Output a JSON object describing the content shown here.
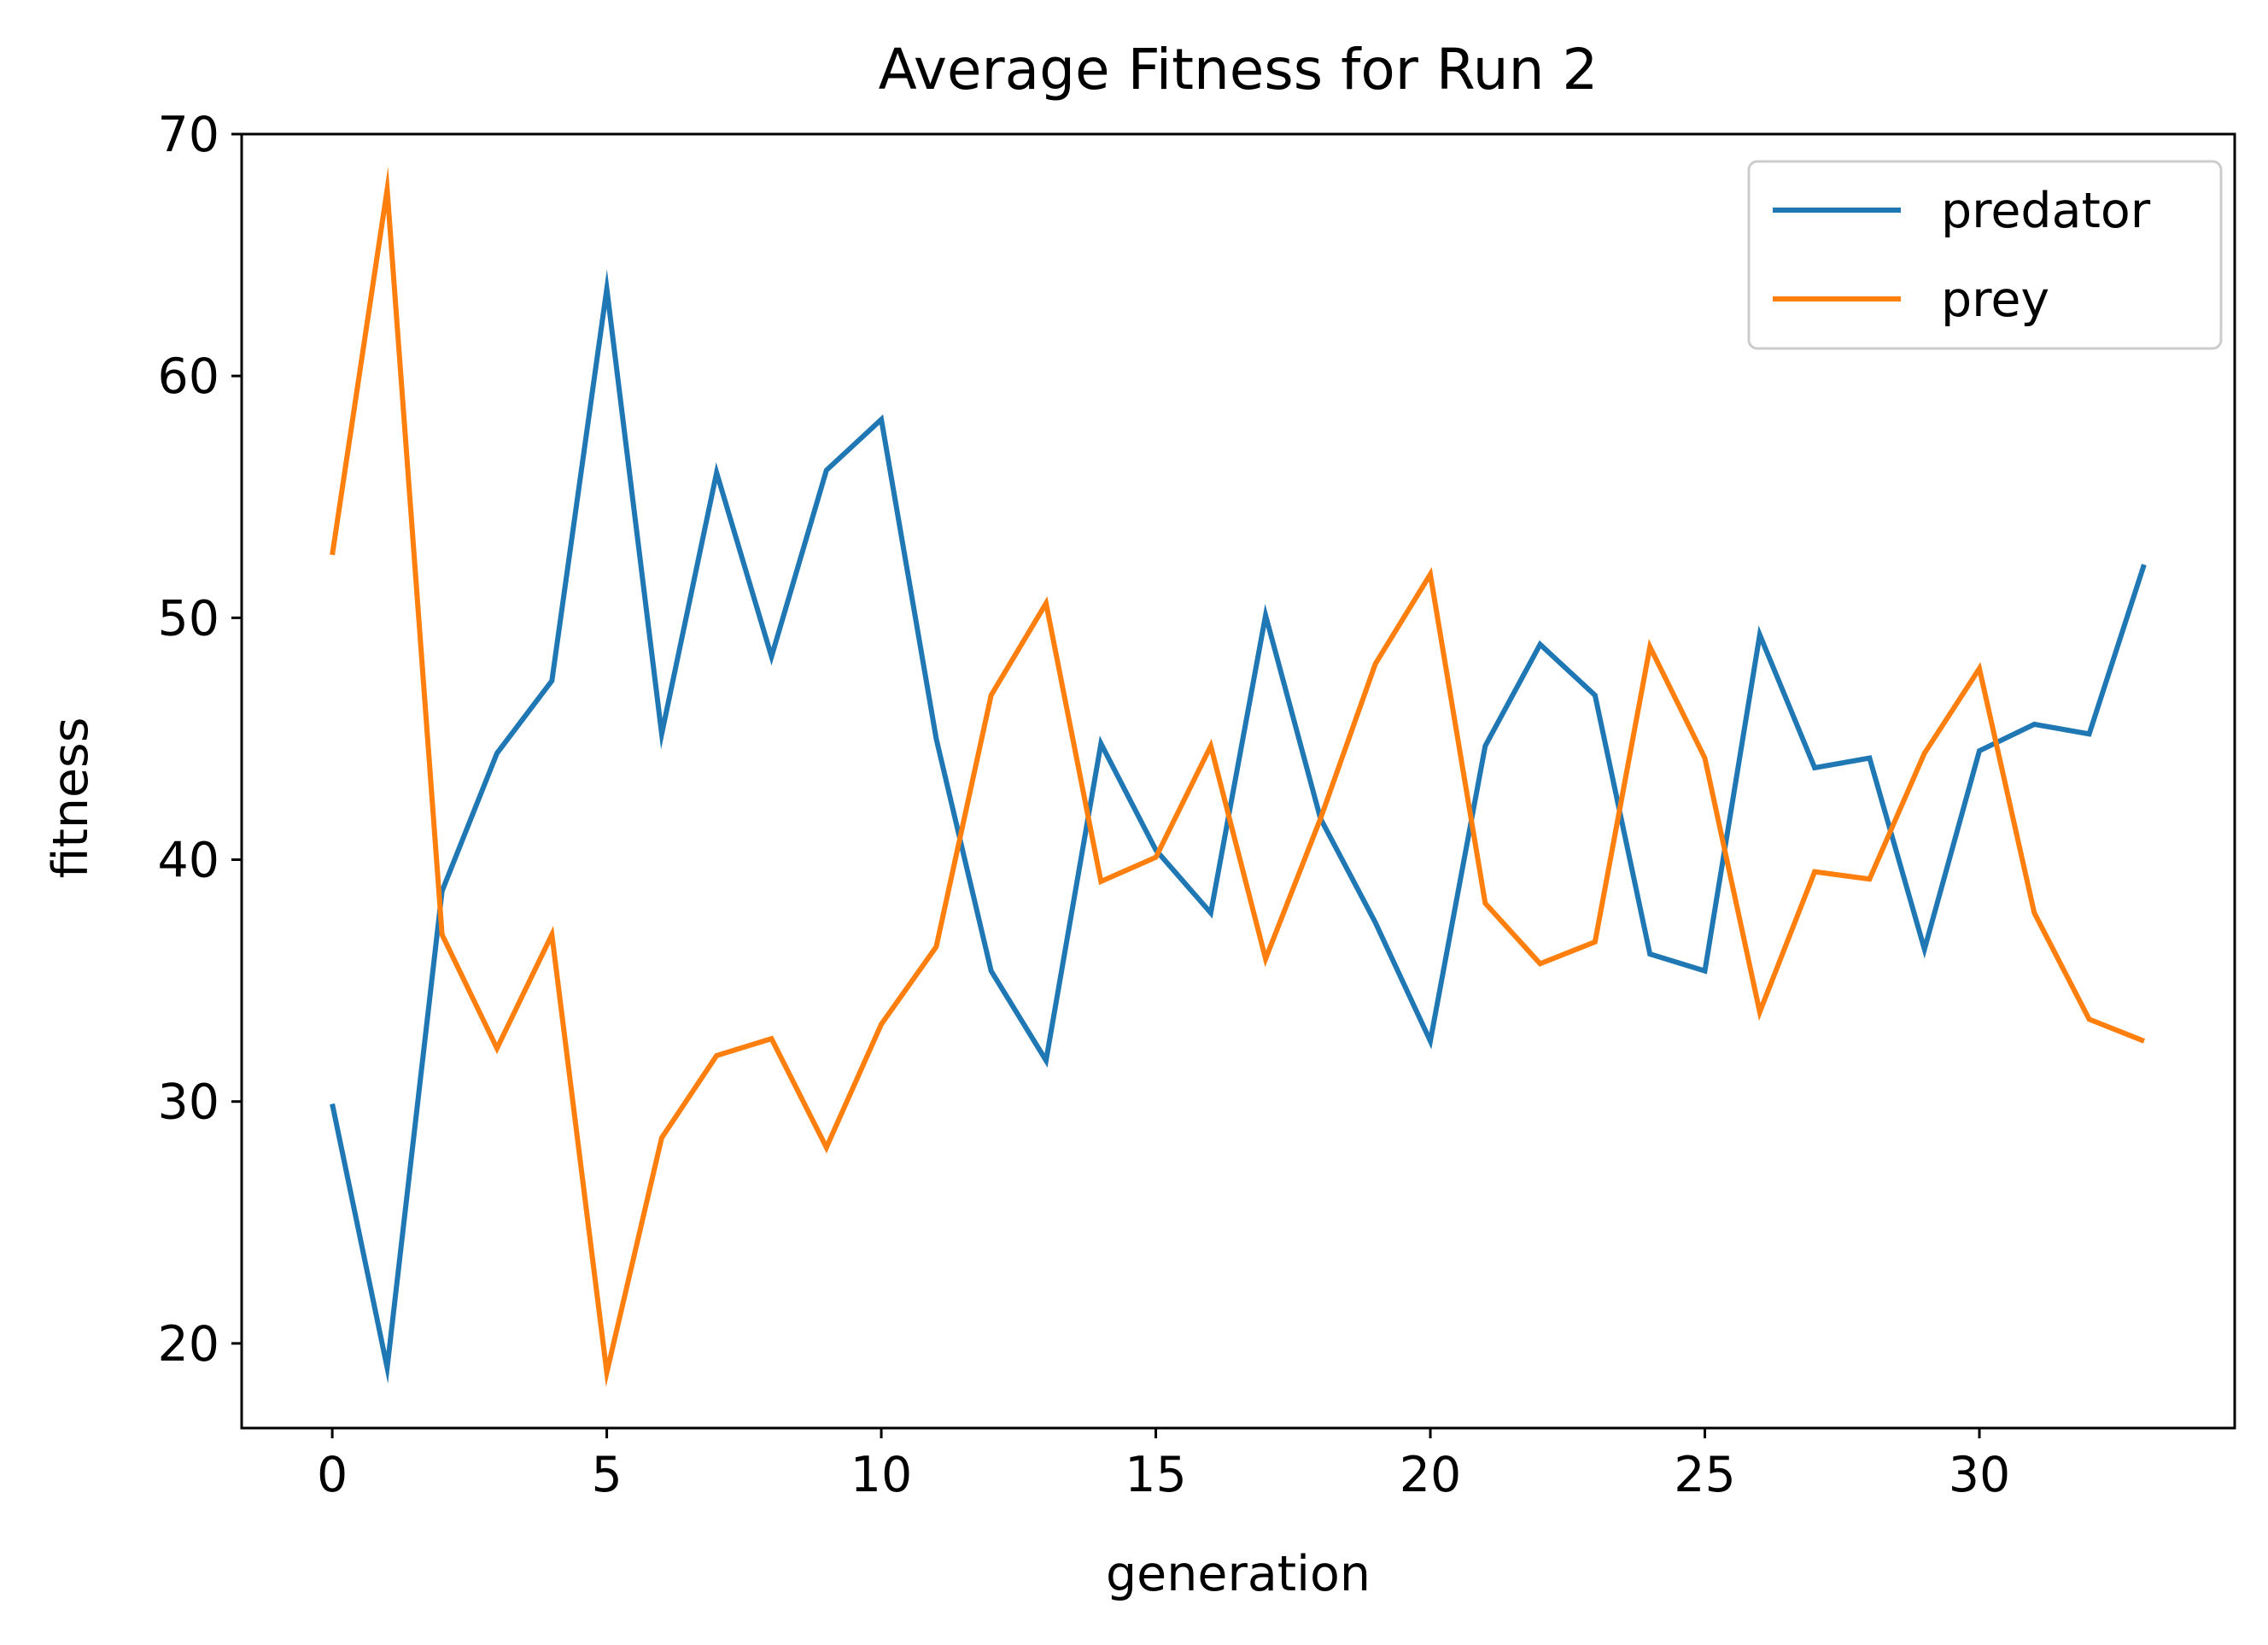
{
  "chart_data": {
    "type": "line",
    "title": "Average Fitness for Run 2",
    "xlabel": "generation",
    "ylabel": "fitness",
    "xlim": [
      -1.65,
      34.65
    ],
    "ylim": [
      16.5,
      70
    ],
    "xticks": [
      0,
      5,
      10,
      15,
      20,
      25,
      30
    ],
    "yticks": [
      20,
      30,
      40,
      50,
      60,
      70
    ],
    "grid": false,
    "legend_position": "top-right",
    "x": [
      0,
      1,
      2,
      3,
      4,
      5,
      6,
      7,
      8,
      9,
      10,
      11,
      12,
      13,
      14,
      15,
      16,
      17,
      18,
      19,
      20,
      21,
      22,
      23,
      24,
      25,
      26,
      27,
      28,
      29,
      30,
      31,
      32,
      33
    ],
    "series": [
      {
        "name": "predator",
        "color": "#1f77b4",
        "values": [
          29.9,
          19.0,
          38.7,
          44.4,
          47.4,
          63.6,
          45.2,
          56.0,
          48.4,
          56.1,
          58.2,
          45.0,
          35.4,
          31.7,
          44.8,
          40.4,
          37.8,
          50.1,
          41.7,
          37.4,
          32.5,
          44.7,
          48.9,
          46.8,
          36.1,
          35.4,
          49.3,
          43.8,
          44.2,
          36.3,
          44.5,
          45.6,
          45.2,
          52.2
        ]
      },
      {
        "name": "prey",
        "color": "#ff7f0e",
        "values": [
          52.6,
          67.7,
          36.9,
          32.2,
          36.9,
          18.8,
          28.5,
          31.9,
          32.6,
          28.1,
          33.2,
          36.4,
          46.8,
          50.6,
          39.1,
          40.1,
          44.7,
          35.9,
          41.7,
          48.1,
          51.8,
          38.2,
          35.7,
          36.6,
          48.8,
          44.2,
          33.7,
          39.5,
          39.2,
          44.4,
          47.9,
          37.8,
          33.4,
          32.5
        ]
      }
    ]
  }
}
